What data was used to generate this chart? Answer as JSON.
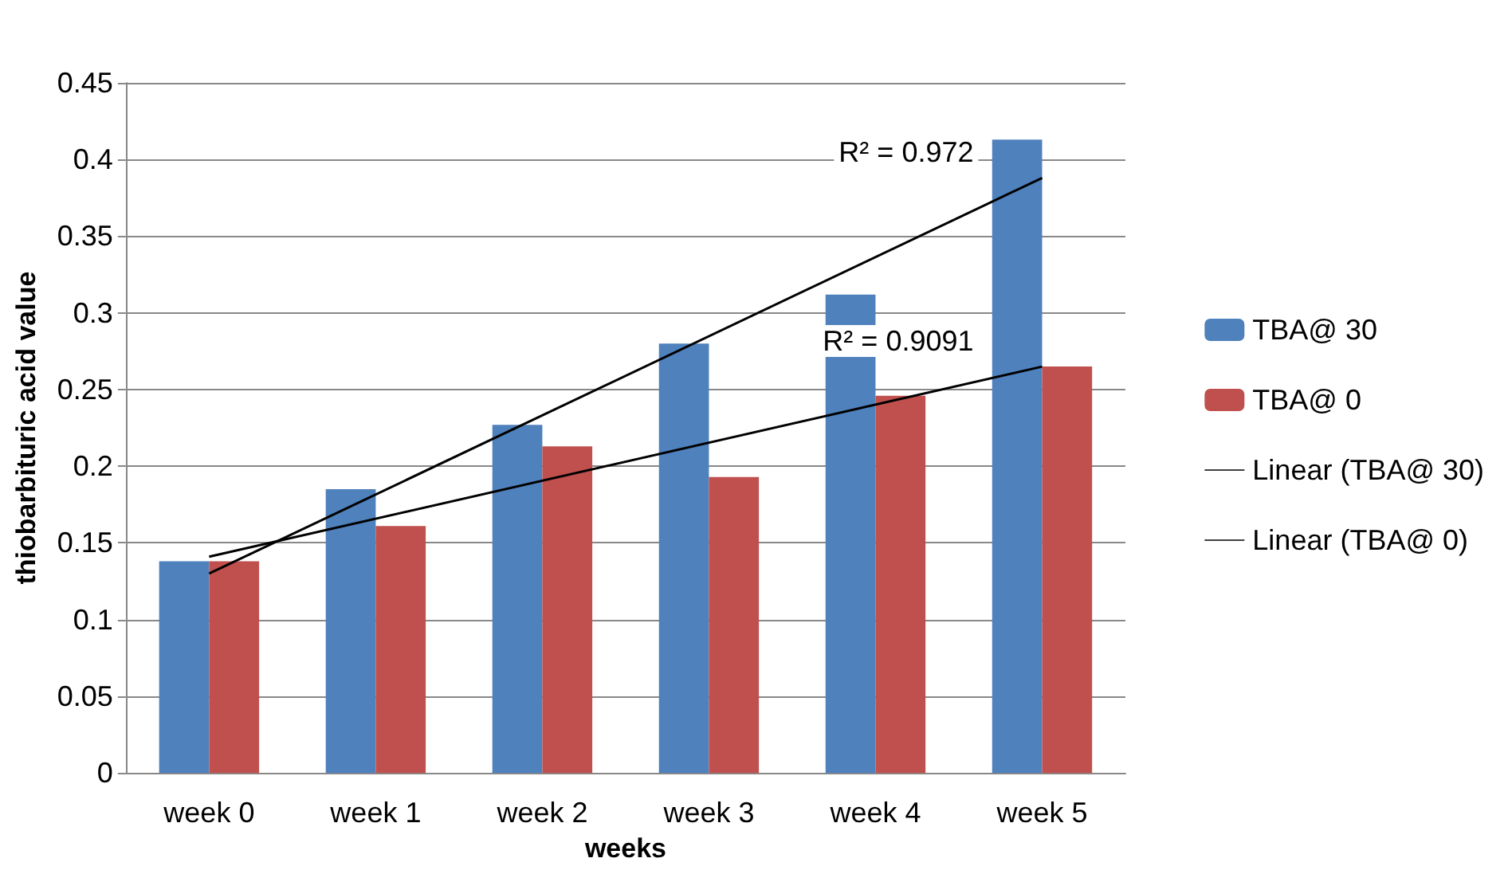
{
  "chart_data": {
    "type": "bar",
    "xlabel": "weeks",
    "ylabel": "thiobarbituric acid value",
    "categories": [
      "week 0",
      "week 1",
      "week 2",
      "week 3",
      "week 4",
      "week 5"
    ],
    "series": [
      {
        "name": "TBA@ 30",
        "color": "#4f81bd",
        "values": [
          0.138,
          0.185,
          0.227,
          0.28,
          0.312,
          0.413
        ]
      },
      {
        "name": "TBA@ 0",
        "color": "#c0504d",
        "values": [
          0.138,
          0.161,
          0.213,
          0.193,
          0.246,
          0.265
        ]
      },
      {
        "name": "Linear (TBA@ 30)",
        "type": "line",
        "color": "#000000",
        "x": [
          "week 0",
          "week 5"
        ],
        "values": [
          0.13,
          0.388
        ]
      },
      {
        "name": "Linear (TBA@ 0)",
        "type": "line",
        "color": "#000000",
        "x": [
          "week 0",
          "week 5"
        ],
        "values": [
          0.141,
          0.265
        ]
      }
    ],
    "annotations": [
      "R² = 0.972",
      "R² = 0.9091"
    ],
    "ylim": [
      0,
      0.45
    ],
    "yticks": [
      0,
      0.05,
      0.1,
      0.15,
      0.2,
      0.25,
      0.3,
      0.35,
      0.4,
      0.45
    ],
    "grid": "y",
    "legend": "right",
    "marker": "none",
    "line_style": "solid"
  }
}
